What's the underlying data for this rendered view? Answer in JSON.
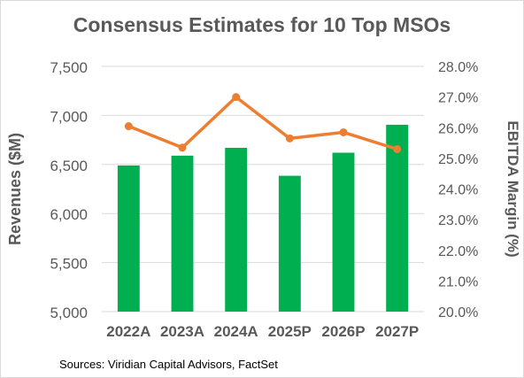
{
  "chart_data": {
    "type": "bar",
    "title": "Consensus Estimates for 10 Top MSOs",
    "categories": [
      "2022A",
      "2023A",
      "2024A",
      "2025P",
      "2026P",
      "2027P"
    ],
    "series": [
      {
        "type": "bar",
        "axis": "left",
        "color": "#00b050",
        "values": [
          6490,
          6590,
          6670,
          6385,
          6620,
          6905
        ]
      },
      {
        "type": "line",
        "axis": "right",
        "color": "#ed7d31",
        "values": [
          26.05,
          25.35,
          27.0,
          25.65,
          25.85,
          25.3
        ]
      }
    ],
    "ylabel": "Revenues ($M)",
    "y2label": "EBITDA Margin (%)",
    "ylim": [
      5000,
      7500
    ],
    "y2lim": [
      20.0,
      28.0
    ],
    "yticks": [
      "5,000",
      "5,500",
      "6,000",
      "6,500",
      "7,000",
      "7,500"
    ],
    "y2ticks": [
      "20.0%",
      "21.0%",
      "22.0%",
      "23.0%",
      "24.0%",
      "25.0%",
      "26.0%",
      "27.0%",
      "28.0%"
    ],
    "grid": true,
    "legend": "none"
  },
  "source": "Sources: Viridian Capital Advisors, FactSet"
}
